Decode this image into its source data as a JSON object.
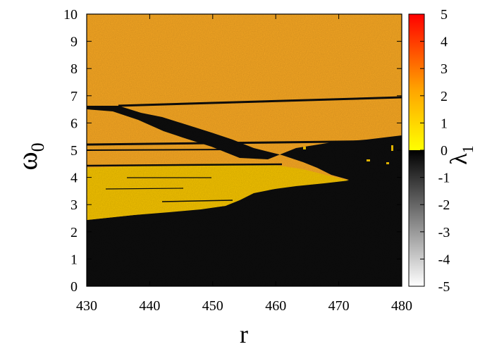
{
  "chart_data": {
    "type": "heatmap",
    "title": "",
    "xlabel": "r",
    "ylabel_main": "ω",
    "ylabel_sub": "0",
    "xlim": [
      430,
      480
    ],
    "ylim": [
      0,
      10
    ],
    "x_ticks": [
      "430",
      "440",
      "450",
      "460",
      "470",
      "480"
    ],
    "y_ticks": [
      "0",
      "1",
      "2",
      "3",
      "4",
      "5",
      "6",
      "7",
      "8",
      "9",
      "10"
    ],
    "grid": false,
    "colorbar": {
      "label_main": "λ",
      "label_sub": "1",
      "range": [
        -5,
        5
      ],
      "ticks": [
        "-5",
        "-4",
        "-3",
        "-2",
        "-1",
        "0",
        "1",
        "2",
        "3",
        "4",
        "5"
      ],
      "stops_positive": [
        "#ffff00",
        "#ffa500",
        "#ff0000"
      ],
      "stops_negative": [
        "#000000",
        "#ffffff"
      ]
    },
    "regions": [
      {
        "desc": "chaotic upper region",
        "lambda": 1.6
      },
      {
        "desc": "periodic lower band",
        "lambda": -0.05
      },
      {
        "desc": "chaotic lower wedge",
        "lambda": 0.6
      },
      {
        "desc": "periodic diagonal tongue",
        "lambda": -0.05
      }
    ]
  }
}
